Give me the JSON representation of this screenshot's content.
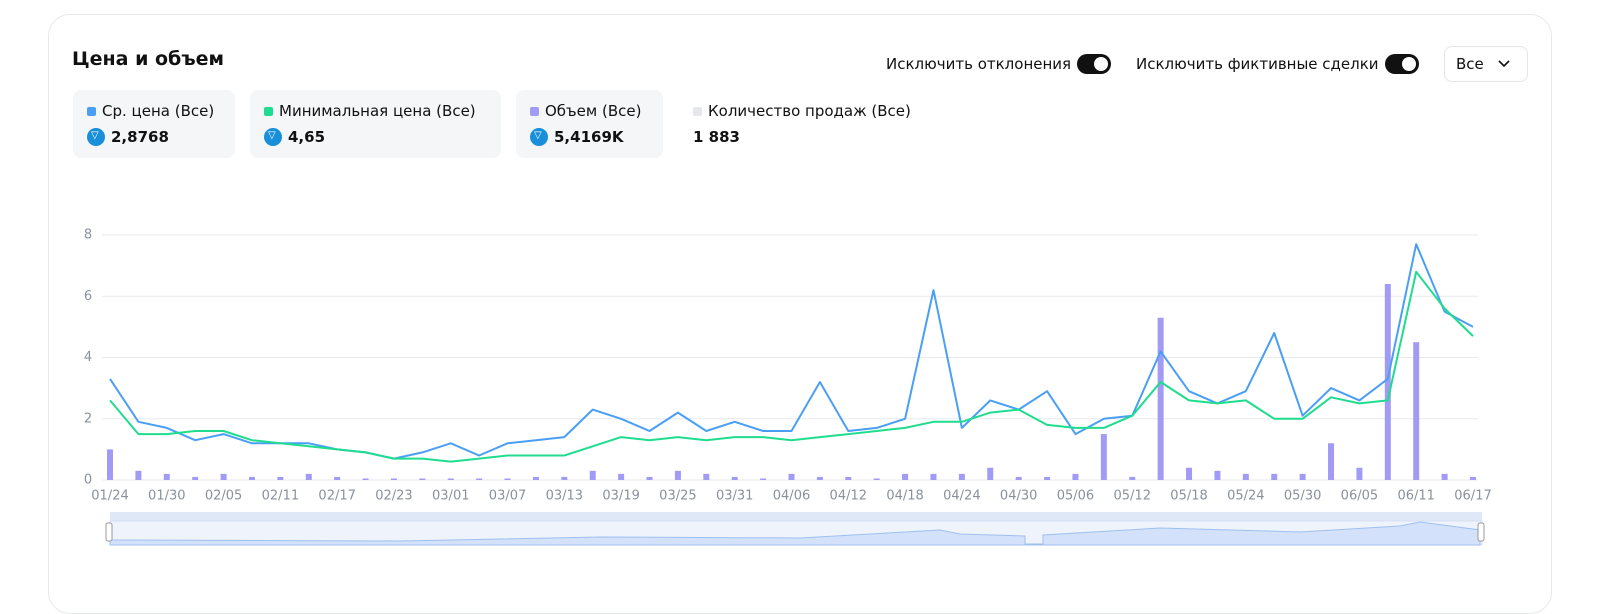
{
  "header": {
    "title": "Цена и объем"
  },
  "controls": {
    "toggles": [
      {
        "label": "Исключить отклонения",
        "on": true
      },
      {
        "label": "Исключить фиктивные сделки",
        "on": true
      }
    ],
    "dropdown": "Все"
  },
  "chart_data": {
    "type": "line",
    "categories": [
      "01/24",
      null,
      "01/30",
      null,
      "02/05",
      null,
      "02/11",
      null,
      "02/17",
      null,
      "02/23",
      null,
      "03/01",
      null,
      "03/07",
      null,
      "03/13",
      null,
      "03/19",
      null,
      "03/25",
      null,
      "03/31",
      null,
      "04/06",
      null,
      "04/12",
      null,
      "04/18",
      null,
      "04/24",
      null,
      "04/30",
      null,
      "05/06",
      null,
      "05/12",
      null,
      "05/18",
      null,
      "05/24",
      null,
      "05/30",
      null,
      "06/05",
      null,
      "06/11",
      null,
      "06/17"
    ],
    "ylim": [
      0,
      8
    ],
    "yticks": [
      0,
      2,
      4,
      6,
      8
    ],
    "grid": true,
    "series": [
      {
        "name": "Ср. цена (Все)",
        "type": "line",
        "color": "#4a9ff5",
        "summary": "2,8768",
        "values": [
          3.3,
          1.9,
          1.7,
          1.3,
          1.5,
          1.2,
          1.2,
          1.2,
          1.0,
          0.9,
          0.7,
          0.9,
          1.2,
          0.8,
          1.2,
          1.3,
          1.4,
          2.3,
          2.0,
          1.6,
          2.2,
          1.6,
          1.9,
          1.6,
          1.6,
          3.2,
          1.6,
          1.7,
          2.0,
          6.2,
          1.7,
          2.6,
          2.3,
          2.9,
          1.5,
          2.0,
          2.1,
          4.2,
          2.9,
          2.5,
          2.9,
          4.8,
          2.1,
          3.0,
          2.6,
          3.3,
          7.7,
          5.5,
          5.0
        ]
      },
      {
        "name": "Минимальная цена (Все)",
        "type": "line",
        "color": "#1fdc8f",
        "summary": "4,65",
        "values": [
          2.6,
          1.5,
          1.5,
          1.6,
          1.6,
          1.3,
          1.2,
          1.1,
          1.0,
          0.9,
          0.7,
          0.7,
          0.6,
          0.7,
          0.8,
          0.8,
          0.8,
          1.1,
          1.4,
          1.3,
          1.4,
          1.3,
          1.4,
          1.4,
          1.3,
          1.4,
          1.5,
          1.6,
          1.7,
          1.9,
          1.9,
          2.2,
          2.3,
          1.8,
          1.7,
          1.7,
          2.1,
          3.2,
          2.6,
          2.5,
          2.6,
          2.0,
          2.0,
          2.7,
          2.5,
          2.6,
          6.8,
          5.6,
          4.7
        ]
      },
      {
        "name": "Объем (Все)",
        "type": "bar",
        "color": "#a29bf5",
        "summary": "5,4169K",
        "values": [
          1.0,
          0.3,
          0.2,
          0.1,
          0.2,
          0.1,
          0.1,
          0.2,
          0.1,
          0.05,
          0.05,
          0.05,
          0.05,
          0.05,
          0.05,
          0.1,
          0.1,
          0.3,
          0.2,
          0.1,
          0.3,
          0.2,
          0.1,
          0.05,
          0.2,
          0.1,
          0.1,
          0.05,
          0.2,
          0.2,
          0.2,
          0.4,
          0.1,
          0.1,
          0.2,
          1.5,
          0.1,
          5.3,
          0.4,
          0.3,
          0.2,
          0.2,
          0.2,
          1.2,
          0.4,
          6.4,
          4.5,
          0.2,
          0.1
        ]
      }
    ],
    "extra": {
      "name": "Количество продаж (Все)",
      "color": "#e6e7ea",
      "summary": "1 883"
    }
  }
}
